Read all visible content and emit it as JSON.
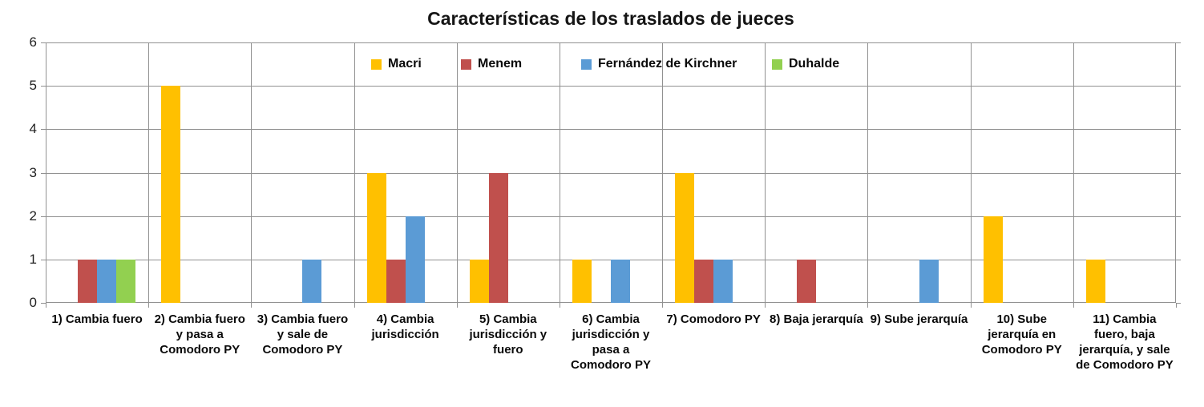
{
  "chart_data": {
    "type": "bar",
    "title": "Características de los traslados de jueces",
    "categories": [
      "1) Cambia fuero",
      "2) Cambia fuero y pasa a Comodoro PY",
      "3) Cambia fuero y sale de Comodoro PY",
      "4) Cambia jurisdicción",
      "5) Cambia jurisdicción y fuero",
      "6) Cambia jurisdicción y pasa a Comodoro PY",
      "7) Comodoro PY",
      "8) Baja jerarquía",
      "9) Sube jerarquía",
      "10) Sube jerarquía en Comodoro PY",
      "11) Cambia fuero, baja jerarquía, y sale de Comodoro PY"
    ],
    "series": [
      {
        "name": "Macri",
        "color": "#FFC000",
        "values": [
          0,
          5,
          0,
          3,
          1,
          1,
          3,
          0,
          0,
          2,
          1
        ]
      },
      {
        "name": "Menem",
        "color": "#C0504D",
        "values": [
          1,
          0,
          0,
          1,
          3,
          0,
          1,
          1,
          0,
          0,
          0
        ]
      },
      {
        "name": "Fernández de Kirchner",
        "color": "#5B9BD5",
        "values": [
          1,
          0,
          1,
          2,
          0,
          1,
          1,
          0,
          1,
          0,
          0
        ]
      },
      {
        "name": "Duhalde",
        "color": "#92D050",
        "values": [
          1,
          0,
          0,
          0,
          0,
          0,
          0,
          0,
          0,
          0,
          0
        ]
      }
    ],
    "ylim": [
      0,
      6
    ],
    "yticks": [
      0,
      1,
      2,
      3,
      4,
      5,
      6
    ],
    "grid": {
      "horizontal": true,
      "vertical": true,
      "color": "#919191"
    },
    "legend_position": "top-inside"
  },
  "colors": {
    "background": "#ffffff",
    "axis": "#919191",
    "text": "#0a0a0a"
  }
}
